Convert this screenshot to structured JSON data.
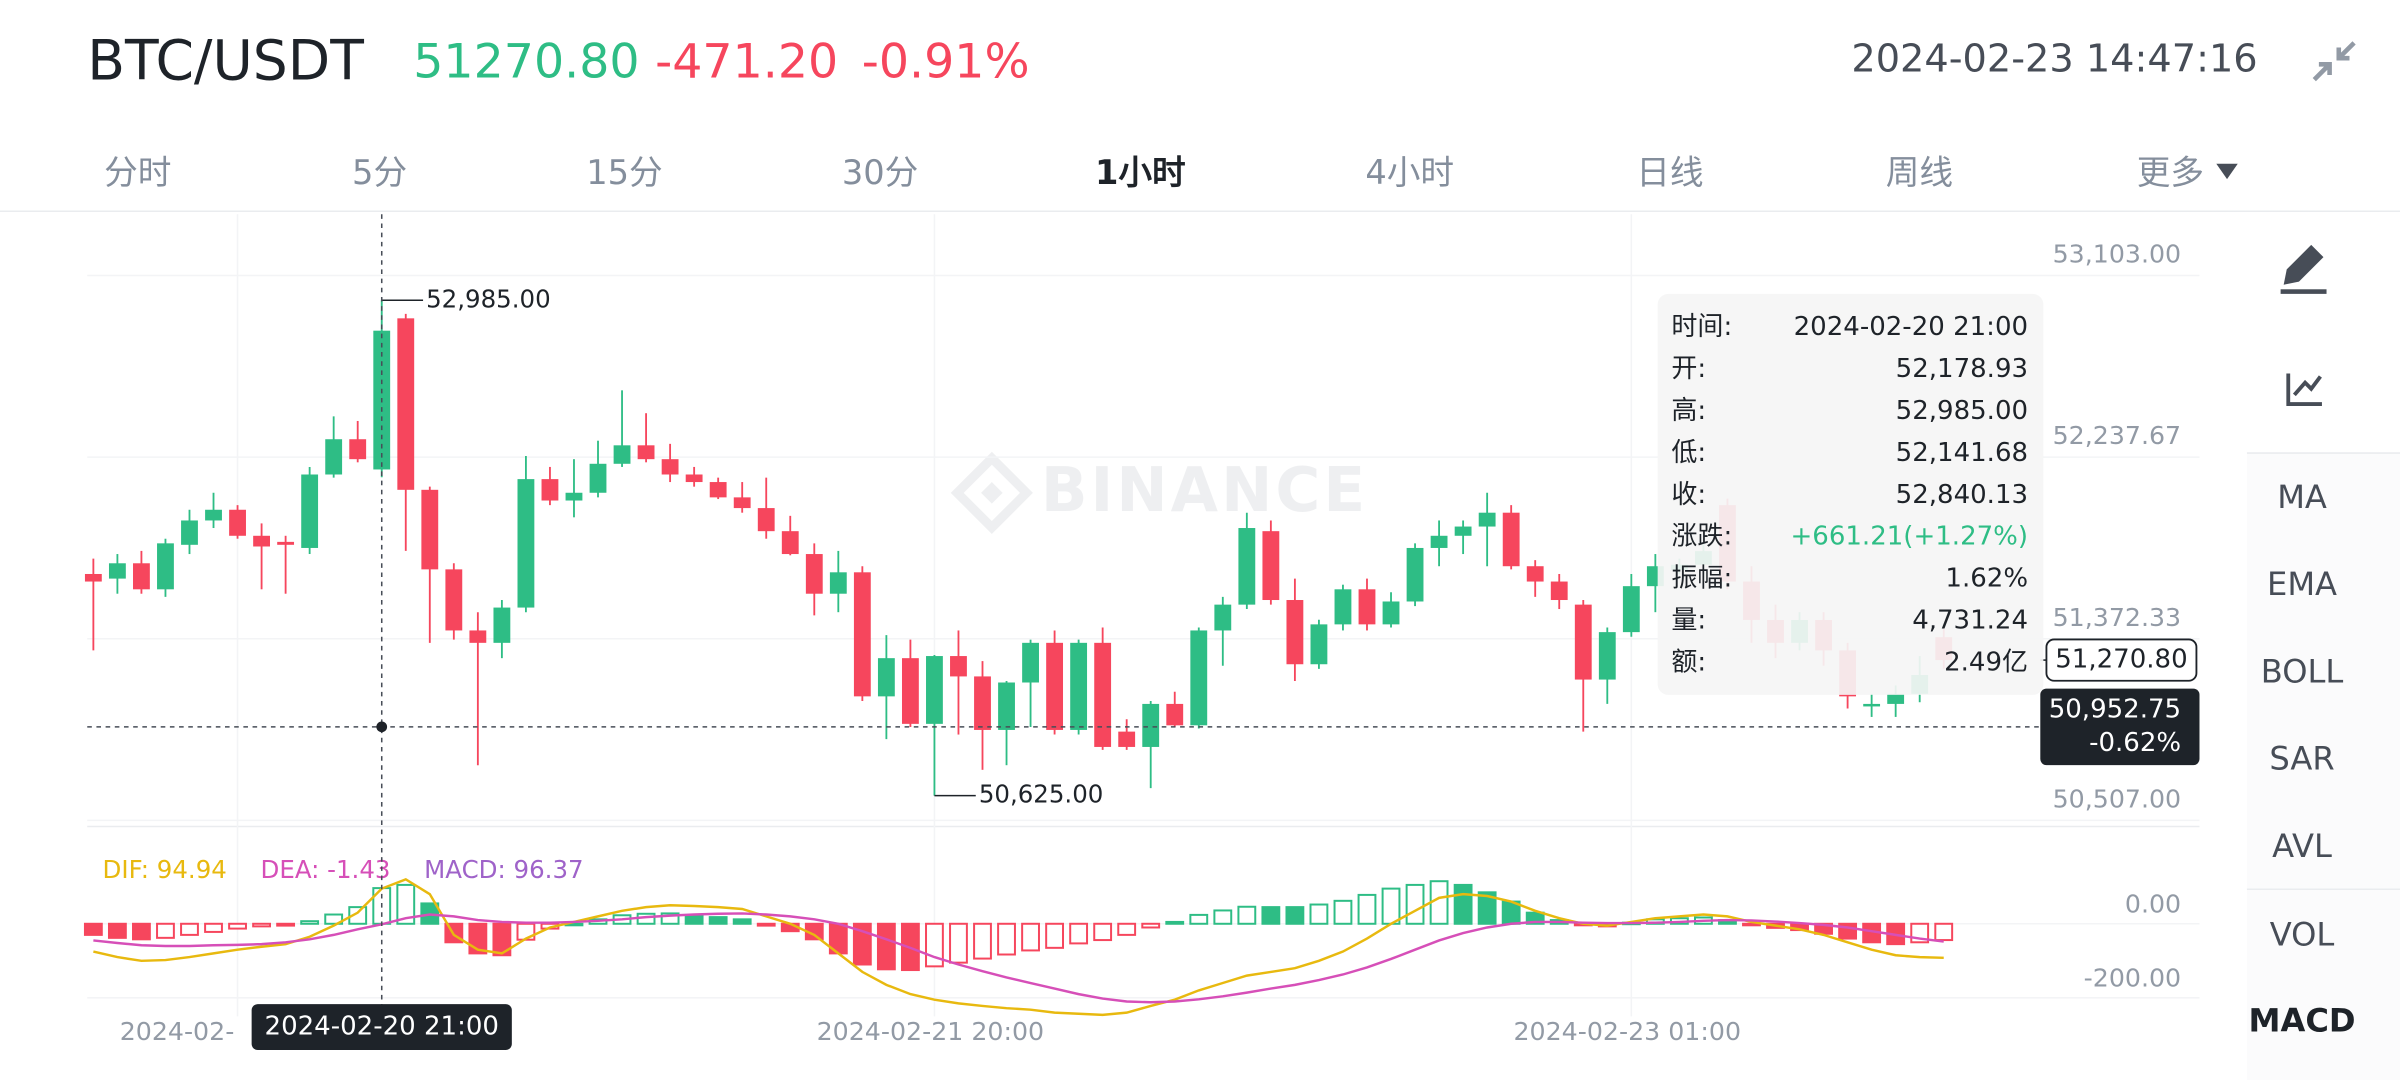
{
  "header": {
    "symbol": "BTC/USDT",
    "price": "51270.80",
    "change": "-471.20",
    "change_pct": "-0.91%",
    "datetime": "2024-02-23 14:47:16",
    "price_color": "#2ebd85",
    "change_color": "#f6465d"
  },
  "tabs": {
    "items": [
      "分时",
      "5分",
      "15分",
      "30分",
      "1小时",
      "4小时",
      "日线",
      "周线",
      "更多"
    ],
    "active_index": 4
  },
  "sidebar": {
    "indicators": [
      "MA",
      "EMA",
      "BOLL",
      "SAR",
      "AVL"
    ],
    "sub_indicators": [
      "VOL",
      "MACD"
    ],
    "active_sub_index": 1
  },
  "watermark": "BINANCE",
  "tooltip": {
    "rows": [
      {
        "label": "时间:",
        "value": "2024-02-20 21:00"
      },
      {
        "label": "开:",
        "value": "52,178.93"
      },
      {
        "label": "高:",
        "value": "52,985.00"
      },
      {
        "label": "低:",
        "value": "52,141.68"
      },
      {
        "label": "收:",
        "value": "52,840.13"
      },
      {
        "label": "涨跌:",
        "value": "+661.21(+1.27%)",
        "color": "#2ebd85"
      },
      {
        "label": "振幅:",
        "value": "1.62%"
      },
      {
        "label": "量:",
        "value": "4,731.24"
      },
      {
        "label": "额:",
        "value": "2.49亿"
      }
    ]
  },
  "chart_data": [
    {
      "type": "candlestick",
      "categories": [
        null,
        null,
        null,
        null,
        null,
        null,
        "2024-02-",
        null,
        null,
        null,
        null,
        null,
        null,
        null,
        null,
        null,
        null,
        null,
        null,
        null,
        null,
        null,
        null,
        null,
        null,
        null,
        null,
        null,
        null,
        null,
        null,
        null,
        null,
        null,
        null,
        "2024-02-21 20:00",
        null,
        null,
        null,
        null,
        null,
        null,
        null,
        null,
        null,
        null,
        null,
        null,
        null,
        null,
        null,
        null,
        null,
        null,
        null,
        null,
        null,
        null,
        null,
        null,
        null,
        null,
        null,
        null,
        "2024-02-23 01:00",
        null,
        null,
        null,
        null,
        null,
        null,
        null,
        null,
        null,
        null,
        null,
        null,
        null
      ],
      "open": [
        51681,
        51659,
        51732,
        51608,
        51820,
        51936,
        51987,
        51863,
        51834,
        51805,
        52155,
        52323,
        52178.93,
        52899,
        52082,
        51703,
        51412,
        51353,
        51521,
        52133,
        52031,
        52068,
        52206,
        52294,
        52228,
        52155,
        52119,
        52046,
        51995,
        51885,
        51776,
        51587,
        51689,
        51098,
        51280,
        50967,
        51290,
        51193,
        50938,
        51164,
        51353,
        50938,
        51353,
        50930,
        50857,
        51062,
        50960,
        51412,
        51535,
        51885,
        51557,
        51251,
        51441,
        51608,
        51441,
        51550,
        51805,
        51863,
        51907,
        51973,
        51718,
        51645,
        51535,
        51178,
        51404,
        51623,
        51700,
        51725,
        52009,
        51645,
        51462,
        51353,
        51462,
        51317,
        51050,
        51062,
        51110,
        51380
      ],
      "high": [
        51754,
        51776,
        51791,
        51849,
        51987,
        52068,
        52009,
        51922,
        51863,
        52191,
        52432,
        52410,
        52985,
        52920,
        52097,
        51732,
        51499,
        51557,
        52243,
        52191,
        52228,
        52316,
        52556,
        52447,
        52301,
        52191,
        52140,
        52119,
        52140,
        51958,
        51827,
        51791,
        51718,
        51390,
        51368,
        51295,
        51412,
        51266,
        51171,
        51368,
        51412,
        51368,
        51426,
        50989,
        51076,
        51120,
        51426,
        51572,
        51973,
        51936,
        51659,
        51463,
        51630,
        51659,
        51594,
        51827,
        51936,
        51936,
        52068,
        52009,
        51747,
        51681,
        51557,
        51426,
        51681,
        51776,
        51754,
        51827,
        52040,
        51718,
        51535,
        51499,
        51499,
        51353,
        51110,
        51150,
        51290,
        51420
      ],
      "low": [
        51317,
        51587,
        51587,
        51572,
        51776,
        51900,
        51849,
        51608,
        51587,
        51776,
        52140,
        52213,
        52141.68,
        51791,
        51353,
        51368,
        50770,
        51280,
        51499,
        52009,
        51951,
        52046,
        52191,
        52213,
        52119,
        52097,
        52038,
        51973,
        51849,
        51770,
        51484,
        51499,
        51076,
        50894,
        50952,
        50625,
        50916,
        50748,
        50770,
        50952,
        50916,
        50916,
        50843,
        50843,
        50661,
        50952,
        50945,
        51244,
        51514,
        51535,
        51171,
        51229,
        51412,
        51412,
        51426,
        51528,
        51718,
        51776,
        51718,
        51703,
        51572,
        51514,
        50930,
        51062,
        51382,
        51499,
        51681,
        51660,
        51608,
        51353,
        51280,
        51317,
        51244,
        51040,
        51000,
        51000,
        51070,
        51230
      ],
      "close": [
        51645,
        51732,
        51608,
        51827,
        51936,
        51987,
        51863,
        51812,
        51820,
        52155,
        52323,
        52228,
        52840.13,
        52082,
        51703,
        51412,
        51353,
        51521,
        52133,
        52031,
        52068,
        52206,
        52294,
        52228,
        52155,
        52119,
        52046,
        51995,
        51885,
        51776,
        51587,
        51689,
        51098,
        51280,
        50967,
        51290,
        51193,
        50938,
        51164,
        51353,
        50938,
        51353,
        50857,
        50857,
        51062,
        50960,
        51412,
        51535,
        51900,
        51557,
        51251,
        51441,
        51608,
        51441,
        51550,
        51805,
        51863,
        51907,
        51973,
        51718,
        51645,
        51557,
        51178,
        51404,
        51623,
        51718,
        51725,
        51790,
        51645,
        51462,
        51353,
        51462,
        51317,
        51098,
        51062,
        51110,
        51200,
        51270.8
      ],
      "up_color": "#2ebd85",
      "down_color": "#f6465d",
      "ylim": [
        50507,
        53103
      ],
      "yticks": [
        {
          "value": 53103,
          "label": "53,103.00"
        },
        {
          "value": 52237.67,
          "label": "52,237.67"
        },
        {
          "value": 51372.33,
          "label": "51,372.33"
        },
        {
          "value": 50507,
          "label": "50,507.00"
        }
      ],
      "grid": true,
      "high_marker": {
        "value": 52985,
        "label": "52,985.00"
      },
      "low_marker": {
        "value": 50625,
        "label": "50,625.00"
      },
      "last_price": {
        "value": 51270.8,
        "label": "51,270.80"
      },
      "crosshair": {
        "index": 12,
        "value": 50952.75,
        "label": "50,952.75",
        "change": "-0.62%",
        "time": "2024-02-20 21:00"
      }
    },
    {
      "type": "macd",
      "series": [
        {
          "name": "DIF: 94.94",
          "color": "#e8b90f",
          "values": [
            -75,
            -90,
            -100,
            -98,
            -90,
            -80,
            -70,
            -62,
            -55,
            -35,
            -5,
            30,
            94.94,
            120,
            80,
            -30,
            -70,
            -80,
            -40,
            -10,
            5,
            20,
            35,
            45,
            50,
            48,
            45,
            40,
            20,
            0,
            -30,
            -80,
            -130,
            -165,
            -190,
            -205,
            -215,
            -222,
            -228,
            -232,
            -240,
            -243,
            -246,
            -240,
            -222,
            -205,
            -180,
            -160,
            -140,
            -130,
            -120,
            -100,
            -75,
            -40,
            0,
            35,
            70,
            80,
            75,
            60,
            35,
            15,
            0,
            -5,
            5,
            15,
            20,
            25,
            20,
            5,
            -5,
            -15,
            -30,
            -50,
            -70,
            -85,
            -90,
            -92
          ]
        },
        {
          "name": "DEA: -1.43",
          "color": "#d64fb8",
          "values": [
            -45,
            -52,
            -58,
            -60,
            -60,
            -58,
            -57,
            -55,
            -50,
            -42,
            -30,
            -15,
            -1.43,
            15,
            25,
            20,
            10,
            5,
            3,
            3,
            5,
            8,
            12,
            18,
            22,
            25,
            27,
            28,
            25,
            20,
            12,
            0,
            -20,
            -42,
            -65,
            -90,
            -110,
            -128,
            -145,
            -160,
            -175,
            -190,
            -202,
            -210,
            -212,
            -210,
            -204,
            -196,
            -186,
            -175,
            -165,
            -152,
            -137,
            -118,
            -95,
            -70,
            -45,
            -25,
            -10,
            0,
            5,
            5,
            3,
            2,
            2,
            3,
            5,
            8,
            10,
            9,
            6,
            2,
            -3,
            -10,
            -20,
            -30,
            -40,
            -48
          ]
        },
        {
          "name": "MACD: 96.37",
          "color": "#9f63c9",
          "values": [
            -30,
            -38,
            -42,
            -38,
            -30,
            -22,
            -13,
            -7,
            -5,
            7,
            25,
            45,
            96.37,
            105,
            55,
            -50,
            -80,
            -85,
            -43,
            -13,
            0,
            12,
            23,
            27,
            28,
            23,
            18,
            12,
            -5,
            -20,
            -42,
            -80,
            -110,
            -123,
            -125,
            -115,
            -105,
            -94,
            -83,
            -72,
            -65,
            -53,
            -44,
            -30,
            -10,
            5,
            24,
            36,
            46,
            45,
            45,
            52,
            62,
            78,
            95,
            105,
            115,
            105,
            85,
            60,
            30,
            10,
            -3,
            -7,
            3,
            12,
            15,
            17,
            10,
            -4,
            -11,
            -17,
            -27,
            -40,
            -50,
            -55,
            -50,
            -44
          ]
        }
      ],
      "up_color": "#2ebd85",
      "down_color": "#f6465d",
      "ylim": [
        -250,
        180
      ],
      "yticks": [
        {
          "value": 0,
          "label": "0.00"
        },
        {
          "value": -200,
          "label": "-200.00"
        }
      ]
    }
  ]
}
